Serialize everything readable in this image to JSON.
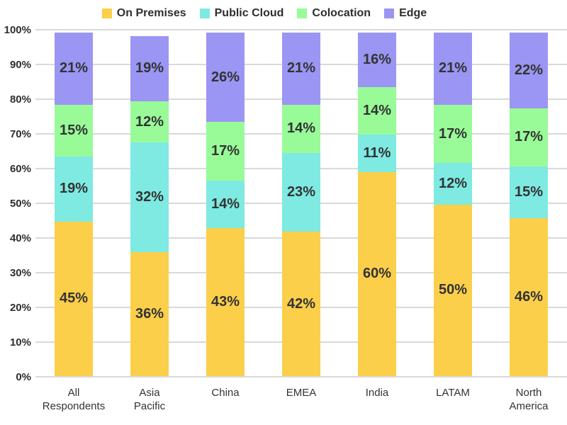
{
  "chart_data": {
    "type": "bar",
    "stacked": true,
    "orientation": "vertical",
    "categories": [
      "All\nRespondents",
      "Asia\nPacific",
      "China",
      "EMEA",
      "India",
      "LATAM",
      "North\nAmerica"
    ],
    "series": [
      {
        "name": "On Premises",
        "color": "#FCCF4A",
        "values": [
          45,
          36,
          43,
          42,
          60,
          50,
          46
        ]
      },
      {
        "name": "Public Cloud",
        "color": "#7EEAE2",
        "values": [
          19,
          32,
          14,
          23,
          11,
          12,
          15
        ]
      },
      {
        "name": "Colocation",
        "color": "#98FB98",
        "values": [
          15,
          12,
          17,
          14,
          14,
          17,
          17
        ]
      },
      {
        "name": "Edge",
        "color": "#9B95F3",
        "values": [
          21,
          19,
          26,
          21,
          16,
          21,
          22
        ]
      }
    ],
    "value_suffix": "%",
    "yticks": [
      "0%",
      "10%",
      "20%",
      "30%",
      "40%",
      "50%",
      "60%",
      "70%",
      "80%",
      "90%",
      "100%"
    ],
    "ylim": [
      0,
      100
    ],
    "grid": true,
    "legend_position": "top"
  },
  "colors": {
    "background": "#FFFFFF",
    "gridline": "#D9D9D9",
    "axis_text": "#2E2E2E",
    "label_text": "#333333"
  }
}
